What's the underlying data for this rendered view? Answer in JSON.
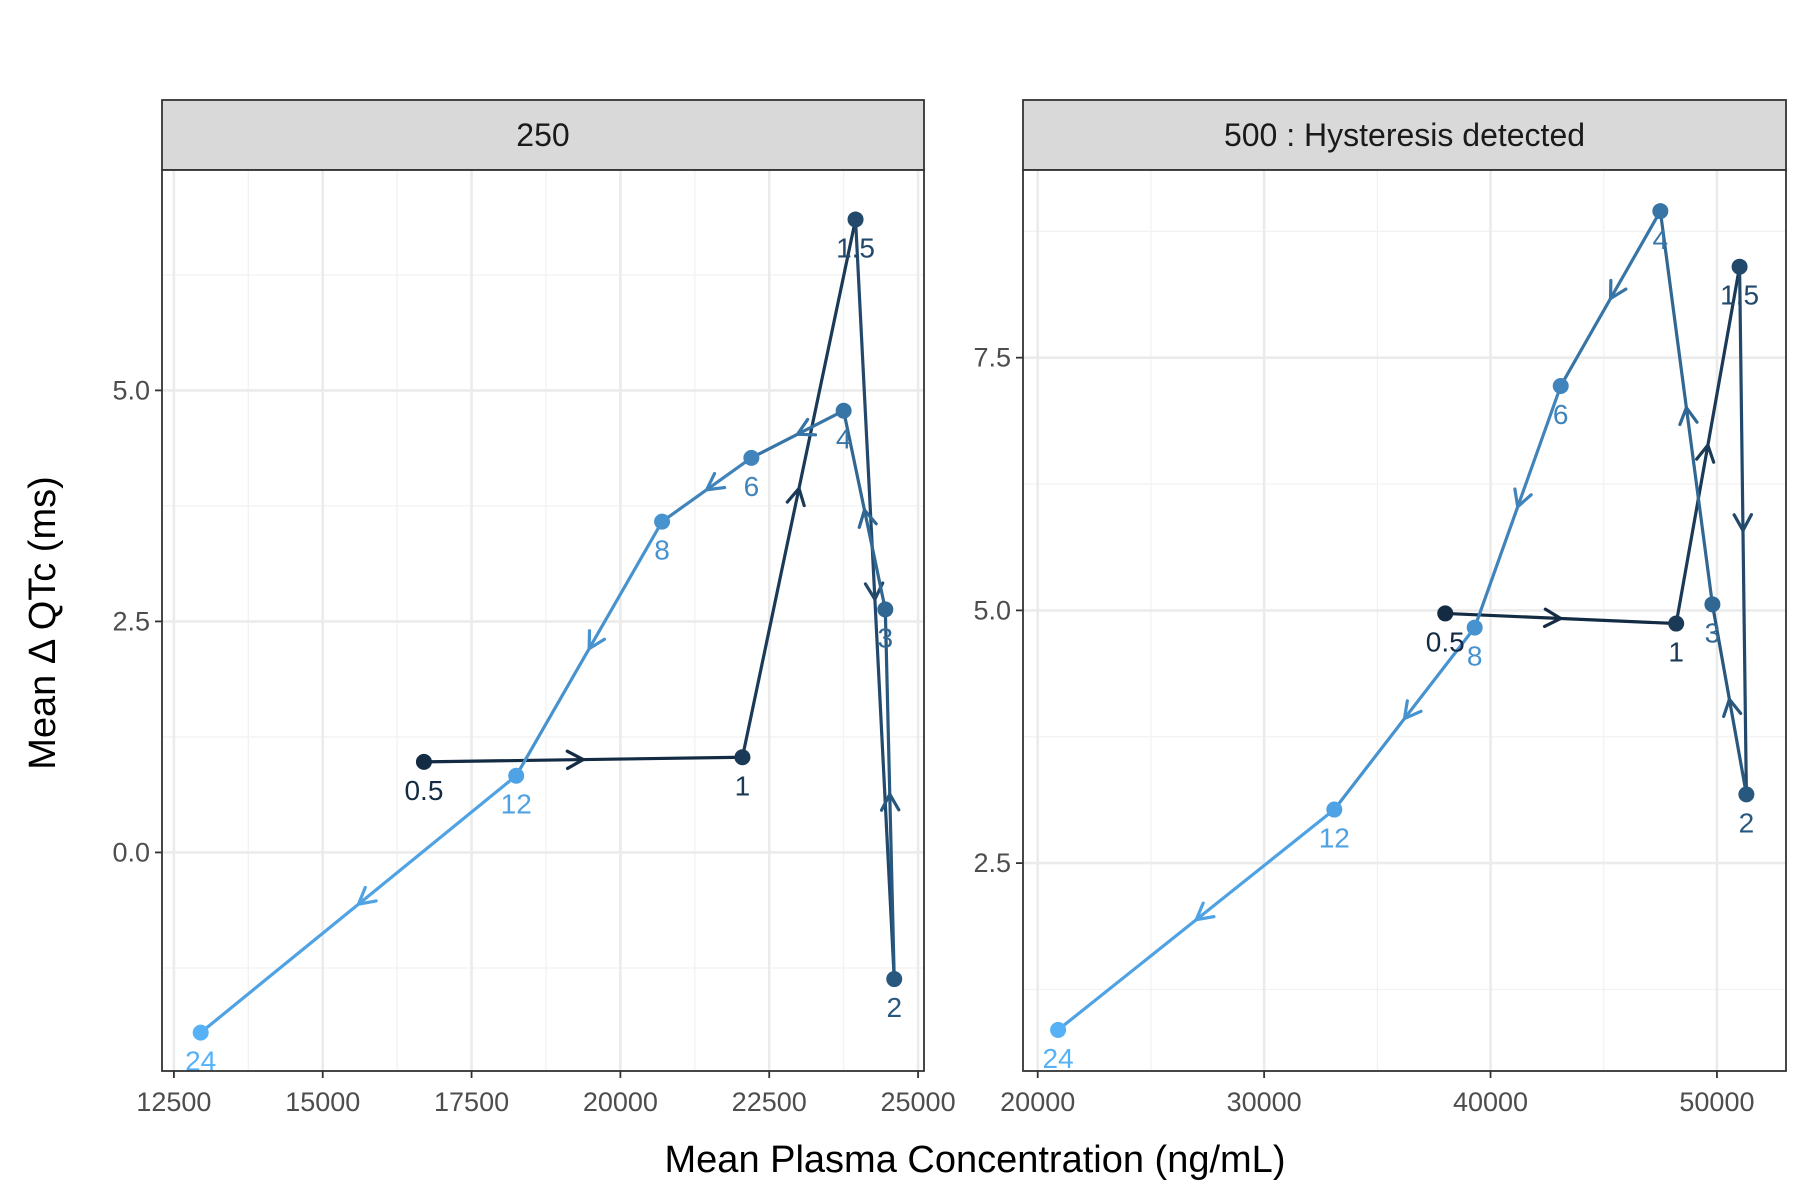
{
  "chart_data": {
    "type": "line",
    "xlabel": "Mean Plasma Concentration (ng/mL)",
    "ylabel": "Mean  Δ QTc (ms)",
    "colors": {
      "darkest": "#132b43",
      "lightest": "#56b1f7",
      "text": "#4d4d4d",
      "strip": "#d9d9d9",
      "grid": "#ebebeb"
    },
    "panels": [
      {
        "strip": "250",
        "xlim": [
          12300,
          25100
        ],
        "ylim": [
          -2.365,
          7.385
        ],
        "xticks": [
          12500,
          15000,
          17500,
          20000,
          22500,
          25000
        ],
        "xtick_labels": [
          "12500",
          "15000",
          "17500",
          "20000",
          "22500",
          "25000"
        ],
        "yticks": [
          0.0,
          2.5,
          5.0
        ],
        "ytick_labels": [
          "0.0",
          "2.5",
          "5.0"
        ],
        "points": [
          {
            "time": "0.5",
            "x": 16700,
            "y": 0.98
          },
          {
            "time": "1",
            "x": 22050,
            "y": 1.03
          },
          {
            "time": "1.5",
            "x": 23950,
            "y": 6.85
          },
          {
            "time": "2",
            "x": 24600,
            "y": -1.37
          },
          {
            "time": "3",
            "x": 24450,
            "y": 2.63
          },
          {
            "time": "4",
            "x": 23750,
            "y": 4.78
          },
          {
            "time": "6",
            "x": 22200,
            "y": 4.27
          },
          {
            "time": "8",
            "x": 20700,
            "y": 3.58
          },
          {
            "time": "12",
            "x": 18250,
            "y": 0.83
          },
          {
            "time": "24",
            "x": 12950,
            "y": -1.95
          }
        ]
      },
      {
        "strip": "500 : Hysteresis detected",
        "xlim": [
          19350,
          53050
        ],
        "ylim": [
          0.4435,
          9.3565
        ],
        "xticks": [
          20000,
          30000,
          40000,
          50000
        ],
        "xtick_labels": [
          "20000",
          "30000",
          "40000",
          "50000"
        ],
        "yticks": [
          2.5,
          5.0,
          7.5
        ],
        "ytick_labels": [
          "2.5",
          "5.0",
          "7.5"
        ],
        "points": [
          {
            "time": "0.5",
            "x": 38000,
            "y": 4.97
          },
          {
            "time": "1",
            "x": 48200,
            "y": 4.87
          },
          {
            "time": "1.5",
            "x": 51000,
            "y": 8.4
          },
          {
            "time": "2",
            "x": 51300,
            "y": 3.18
          },
          {
            "time": "3",
            "x": 49800,
            "y": 5.06
          },
          {
            "time": "4",
            "x": 47500,
            "y": 8.95
          },
          {
            "time": "6",
            "x": 43100,
            "y": 7.22
          },
          {
            "time": "8",
            "x": 39300,
            "y": 4.83
          },
          {
            "time": "12",
            "x": 33100,
            "y": 3.03
          },
          {
            "time": "24",
            "x": 20900,
            "y": 0.85
          }
        ]
      }
    ]
  }
}
